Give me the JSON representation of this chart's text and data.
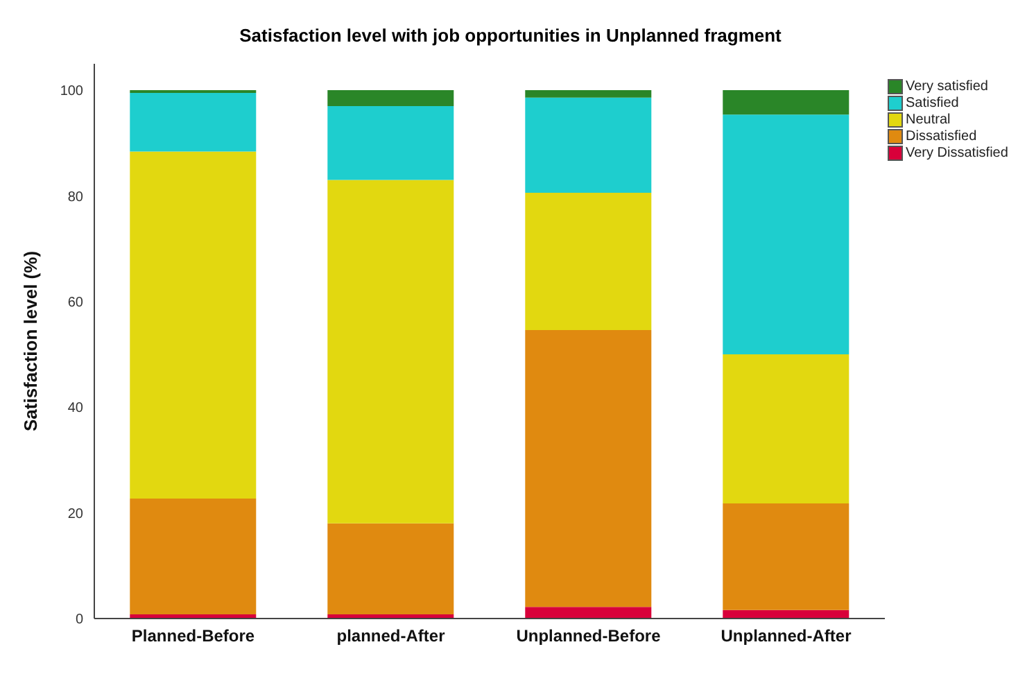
{
  "chart_data": {
    "type": "bar",
    "title": "Satisfaction level with job opportunities in Unplanned fragment",
    "ylabel": "Satisfaction level (%)",
    "categories": [
      "Planned-Before",
      "planned-After",
      "Unplanned-Before",
      "Unplanned-After"
    ],
    "stacked": true,
    "ylim": [
      0,
      105
    ],
    "yticks": [
      0,
      20,
      40,
      60,
      80,
      100
    ],
    "grid": false,
    "legend": "top right",
    "series": [
      {
        "name": "Very Dissatisfied",
        "color": "#d8003a",
        "values": [
          0.8,
          0.8,
          2.2,
          1.6
        ]
      },
      {
        "name": "Dissatisfied",
        "color": "#e08a10",
        "values": [
          21.9,
          17.2,
          52.4,
          20.2
        ]
      },
      {
        "name": "Neutral",
        "color": "#e2d810",
        "values": [
          65.7,
          65.0,
          26.0,
          28.2
        ]
      },
      {
        "name": "Satisfied",
        "color": "#1ecece",
        "values": [
          11.1,
          14.0,
          18.0,
          45.4
        ]
      },
      {
        "name": "Very satisfied",
        "color": "#2a8628",
        "values": [
          0.5,
          3.0,
          1.4,
          4.6
        ]
      }
    ]
  }
}
